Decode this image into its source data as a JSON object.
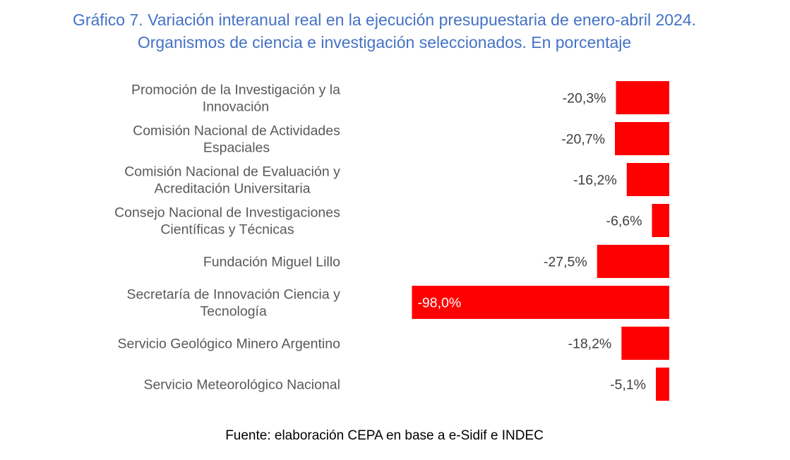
{
  "title_line1": "Gráfico 7. Variación interanual real en la ejecución presupuestaria de enero-abril 2024.",
  "title_line2": "Organismos de ciencia e investigación seleccionados. En porcentaje",
  "source": "Fuente: elaboración CEPA en base a e-Sidif e INDEC",
  "bar_color": "#FF0000",
  "chart_data": {
    "type": "bar",
    "orientation": "horizontal",
    "title": "Gráfico 7. Variación interanual real en la ejecución presupuestaria de enero-abril 2024. Organismos de ciencia e investigación seleccionados. En porcentaje",
    "xlabel": "",
    "ylabel": "",
    "unit": "%",
    "grid": false,
    "legend": "none",
    "xlim": [
      -100,
      0
    ],
    "categories": [
      [
        "Promoción de la Investigación y la",
        "Innovación"
      ],
      [
        "Comisión Nacional de Actividades",
        "Espaciales"
      ],
      [
        "Comisión Nacional de Evaluación y",
        "Acreditación Universitaria"
      ],
      [
        "Consejo Nacional de Investigaciones",
        "Científicas y Técnicas"
      ],
      [
        "Fundación Miguel Lillo"
      ],
      [
        "Secretaría de Innovación Ciencia y",
        "Tecnología"
      ],
      [
        "Servicio Geológico Minero Argentino"
      ],
      [
        "Servicio Meteorológico Nacional"
      ]
    ],
    "values": [
      -20.3,
      -20.7,
      -16.2,
      -6.6,
      -27.5,
      -98.0,
      -18.2,
      -5.1
    ],
    "data_labels": [
      "-20,3%",
      "-20,7%",
      "-16,2%",
      "-6,6%",
      "-27,5%",
      "-98,0%",
      "-18,2%",
      "-5,1%"
    ]
  }
}
